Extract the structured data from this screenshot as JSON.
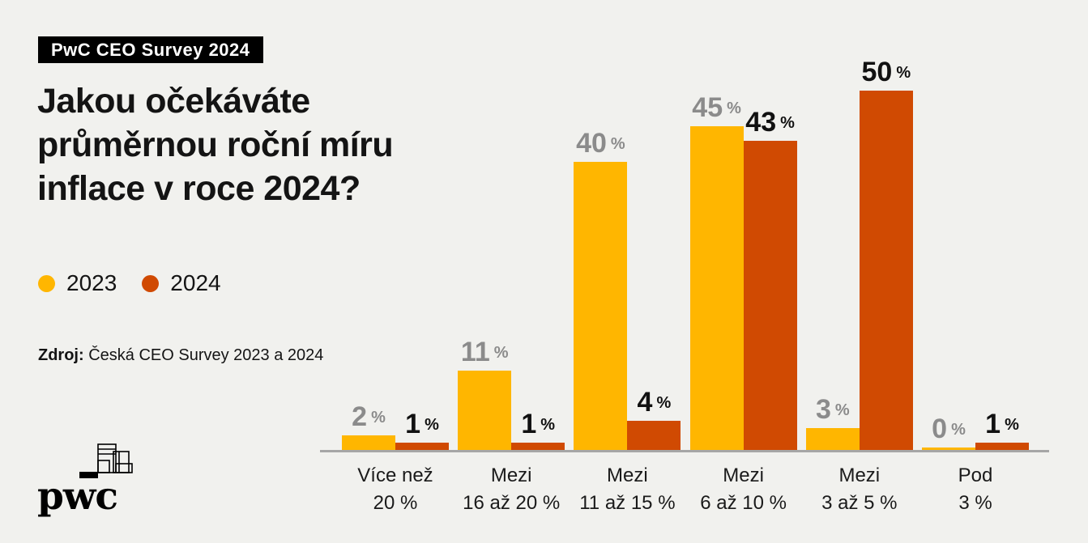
{
  "badge": {
    "label": "PwC CEO Survey 2024",
    "bg": "#000000",
    "fg": "#ffffff"
  },
  "title": {
    "lines": [
      "Jakou očekáváte",
      "průměrnou roční míru",
      "inflace v roce 2024?"
    ]
  },
  "legend": [
    {
      "label": "2023",
      "color": "#ffb600"
    },
    {
      "label": "2024",
      "color": "#d04a02"
    }
  ],
  "source": {
    "prefix": "Zdroj:",
    "text": " Česká CEO Survey 2023 a 2024"
  },
  "logo": {
    "text": "pwc"
  },
  "colors": {
    "background": "#f1f1ee",
    "axis": "#a6a6a6",
    "series_2023": "#ffb600",
    "series_2024": "#d04a02",
    "label_2023": "#8b8b8b",
    "label_2024": "#111111"
  },
  "chart_data": {
    "type": "bar",
    "title": "Jakou očekáváte průměrnou roční míru inflace v roce 2024?",
    "categories": [
      [
        "Více než",
        "20 %"
      ],
      [
        "Mezi",
        "16 až 20 %"
      ],
      [
        "Mezi",
        "11 až 15 %"
      ],
      [
        "Mezi",
        "6 až 10 %"
      ],
      [
        "Mezi",
        "3 až 5 %"
      ],
      [
        "Pod",
        "3 %"
      ]
    ],
    "series": [
      {
        "name": "2023",
        "color": "#ffb600",
        "label_color": "#8b8b8b",
        "values": [
          2,
          11,
          40,
          45,
          3,
          0
        ]
      },
      {
        "name": "2024",
        "color": "#d04a02",
        "label_color": "#111111",
        "values": [
          1,
          1,
          4,
          43,
          50,
          1
        ]
      }
    ],
    "unit": "%",
    "xlabel": "",
    "ylabel": "",
    "ylim": [
      0,
      50
    ],
    "grid": false,
    "value_labels": true,
    "legend_position": "upper-left"
  }
}
